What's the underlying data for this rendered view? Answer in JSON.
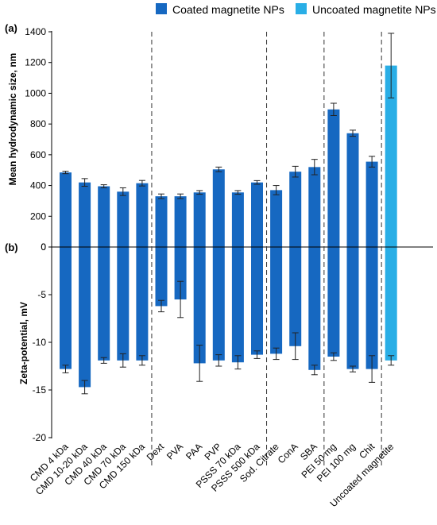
{
  "legend": {
    "placement": "top",
    "items": [
      {
        "label": "Coated magnetite NPs",
        "color": "#1668c1"
      },
      {
        "label": "Uncoated magnetite NPs",
        "color": "#29aee6"
      }
    ]
  },
  "colors": {
    "coated": "#1668c1",
    "uncoated": "#29aee6",
    "axis": "#000000",
    "separator": "#333333"
  },
  "chart_data": [
    {
      "type": "bar",
      "panel_label": "(a)",
      "ylabel": "Mean hydrodynamic size, nm",
      "ylim": [
        0,
        1400
      ],
      "yticks": [
        0,
        200,
        400,
        600,
        800,
        1000,
        1200,
        1400
      ],
      "grid": false,
      "categories": [
        "CMD 4 kDa",
        "CMD 10-20 kDa",
        "CMD 40 kDa",
        "CMD 70 kDa",
        "CMD 150 kDa",
        "Dext",
        "PVA",
        "PAA",
        "PVP",
        "PSSS 70 kDa",
        "PSSS 500 kDa",
        "Sod. Citrate",
        "ConA",
        "SBA",
        "PEI 50 mg",
        "PEI 100 mg",
        "Chit",
        "Uncoated magnetite"
      ],
      "values": [
        485,
        420,
        395,
        360,
        415,
        330,
        330,
        355,
        505,
        355,
        420,
        370,
        490,
        520,
        895,
        740,
        555,
        1180
      ],
      "errors": [
        8,
        25,
        10,
        25,
        18,
        15,
        15,
        12,
        15,
        12,
        12,
        30,
        35,
        50,
        40,
        20,
        35,
        210
      ],
      "series_of_category": [
        "Coated magnetite NPs",
        "Coated magnetite NPs",
        "Coated magnetite NPs",
        "Coated magnetite NPs",
        "Coated magnetite NPs",
        "Coated magnetite NPs",
        "Coated magnetite NPs",
        "Coated magnetite NPs",
        "Coated magnetite NPs",
        "Coated magnetite NPs",
        "Coated magnetite NPs",
        "Coated magnetite NPs",
        "Coated magnetite NPs",
        "Coated magnetite NPs",
        "Coated magnetite NPs",
        "Coated magnetite NPs",
        "Coated magnetite NPs",
        "Uncoated magnetite NPs"
      ],
      "group_separators_after": [
        4,
        10,
        13,
        16
      ]
    },
    {
      "type": "bar",
      "panel_label": "(b)",
      "ylabel": "Zeta-potential, mV",
      "ylim": [
        -20,
        0
      ],
      "yticks": [
        0,
        -5,
        -10,
        -15,
        -20
      ],
      "grid": false,
      "categories": [
        "CMD 4 kDa",
        "CMD 10-20 kDa",
        "CMD 40 kDa",
        "CMD 70 kDa",
        "CMD 150 kDa",
        "Dext",
        "PVA",
        "PAA",
        "PVP",
        "PSSS 70 kDa",
        "PSSS 500 kDa",
        "Sod. Citrate",
        "ConA",
        "SBA",
        "PEI 50 mg",
        "PEI 100 mg",
        "Chit",
        "Uncoated magnetite"
      ],
      "values": [
        -12.8,
        -14.7,
        -11.9,
        -11.9,
        -11.9,
        -6.2,
        -5.5,
        -12.2,
        -11.9,
        -12.1,
        -11.3,
        -11.2,
        -10.4,
        -12.9,
        -11.5,
        -12.8,
        -12.8,
        -11.9
      ],
      "errors": [
        0.4,
        0.7,
        0.3,
        0.7,
        0.5,
        0.6,
        1.9,
        1.9,
        0.6,
        0.7,
        0.4,
        0.6,
        1.4,
        0.5,
        0.4,
        0.3,
        1.4,
        0.5
      ],
      "series_of_category": [
        "Coated magnetite NPs",
        "Coated magnetite NPs",
        "Coated magnetite NPs",
        "Coated magnetite NPs",
        "Coated magnetite NPs",
        "Coated magnetite NPs",
        "Coated magnetite NPs",
        "Coated magnetite NPs",
        "Coated magnetite NPs",
        "Coated magnetite NPs",
        "Coated magnetite NPs",
        "Coated magnetite NPs",
        "Coated magnetite NPs",
        "Coated magnetite NPs",
        "Coated magnetite NPs",
        "Coated magnetite NPs",
        "Coated magnetite NPs",
        "Uncoated magnetite NPs"
      ],
      "group_separators_after": [
        4,
        10,
        13,
        16
      ]
    }
  ]
}
